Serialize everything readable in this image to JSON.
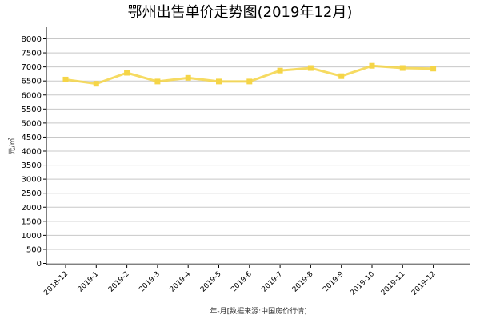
{
  "chart_data": {
    "type": "line",
    "title": "鄂州出售单价走势图(2019年12月)",
    "xlabel": "年-月[数据来源:中国房价行情]",
    "ylabel": "元/㎡",
    "categories": [
      "2018-12",
      "2019-1",
      "2019-2",
      "2019-3",
      "2019-4",
      "2019-5",
      "2019-6",
      "2019-7",
      "2019-8",
      "2019-9",
      "2019-10",
      "2019-11",
      "2019-12"
    ],
    "series": [
      {
        "values": [
          6550,
          6400,
          6790,
          6480,
          6610,
          6480,
          6480,
          6870,
          6960,
          6670,
          7040,
          6960,
          6940
        ]
      }
    ],
    "ylim": [
      0,
      8000
    ],
    "yticks": [
      0,
      500,
      1000,
      1500,
      2000,
      2500,
      3000,
      3500,
      4000,
      4500,
      5000,
      5500,
      6000,
      6500,
      7000,
      7500,
      8000
    ],
    "grid": true,
    "line_color": "#f5d547"
  }
}
